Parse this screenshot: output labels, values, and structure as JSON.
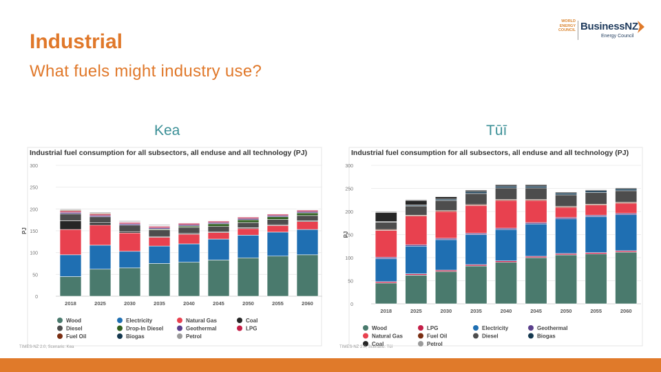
{
  "slide": {
    "title": "Industrial",
    "subtitle": "What fuels might industry use?",
    "scenario_left": "Kea",
    "scenario_right": "Tūī"
  },
  "logo": {
    "wec_text": "WORLD ENERGY COUNCIL",
    "brand": "BusinessNZ",
    "brand_sub": "Energy Council"
  },
  "colors": {
    "accent": "#e0782a",
    "scenario": "#3a8f96",
    "footer": "#e07a2a"
  },
  "chart_data": [
    {
      "type": "bar",
      "stacked": true,
      "title": "Industrial fuel consumption for all subsectors, all enduse and all technology (PJ)",
      "ylabel": "PJ",
      "ylim": [
        0,
        300
      ],
      "yticks": [
        0,
        50,
        100,
        150,
        200,
        250,
        300
      ],
      "grid": true,
      "categories": [
        "2018",
        "2025",
        "2030",
        "2035",
        "2040",
        "2045",
        "2050",
        "2055",
        "2060"
      ],
      "source": "TIMES-NZ 2.0, Scenario: Kea",
      "legend_columns": 4,
      "series": [
        {
          "name": "Wood",
          "color": "#4a7a6d",
          "values": [
            45,
            62,
            65,
            75,
            78,
            83,
            88,
            92,
            95
          ]
        },
        {
          "name": "Electricity",
          "color": "#1f6fb2",
          "values": [
            50,
            55,
            38,
            40,
            42,
            48,
            52,
            55,
            58
          ]
        },
        {
          "name": "Natural Gas",
          "color": "#e8414f",
          "values": [
            58,
            46,
            42,
            20,
            22,
            15,
            15,
            15,
            18
          ]
        },
        {
          "name": "Coal",
          "color": "#262626",
          "values": [
            20,
            5,
            3,
            2,
            2,
            2,
            2,
            2,
            2
          ]
        },
        {
          "name": "Diesel",
          "color": "#4d4d4d",
          "values": [
            16,
            14,
            15,
            15,
            14,
            12,
            12,
            12,
            12
          ]
        },
        {
          "name": "Drop-In Diesel",
          "color": "#2f5f1f",
          "values": [
            0,
            0,
            0,
            2,
            3,
            6,
            6,
            6,
            6
          ]
        },
        {
          "name": "Geothermal",
          "color": "#5a3f8c",
          "values": [
            3,
            3,
            3,
            3,
            3,
            3,
            3,
            3,
            3
          ]
        },
        {
          "name": "LPG",
          "color": "#c41f48",
          "values": [
            3,
            3,
            3,
            3,
            3,
            3,
            3,
            3,
            3
          ]
        },
        {
          "name": "Fuel Oil",
          "color": "#7a2e12",
          "values": [
            2,
            2,
            1,
            1,
            1,
            1,
            1,
            1,
            1
          ]
        },
        {
          "name": "Biogas",
          "color": "#14384f",
          "values": [
            1,
            1,
            1,
            1,
            1,
            1,
            1,
            1,
            1
          ]
        },
        {
          "name": "Petrol",
          "color": "#9a9a9a",
          "values": [
            2,
            2,
            2,
            2,
            1,
            1,
            1,
            1,
            1
          ]
        }
      ]
    },
    {
      "type": "bar",
      "stacked": true,
      "title": "Industrial fuel consumption for all subsectors, all enduse and all technology (PJ)",
      "ylabel": "PJ",
      "ylim": [
        0,
        300
      ],
      "yticks": [
        0,
        50,
        100,
        150,
        200,
        250,
        300
      ],
      "grid": true,
      "categories": [
        "2018",
        "2025",
        "2030",
        "2035",
        "2040",
        "2045",
        "2050",
        "2055",
        "2060"
      ],
      "source": "TIMES-NZ 2.0, Scenario: Tūī",
      "legend_columns": 4,
      "series": [
        {
          "name": "Wood",
          "color": "#4a7a6d",
          "values": [
            45,
            62,
            70,
            82,
            90,
            100,
            106,
            108,
            112
          ]
        },
        {
          "name": "LPG",
          "color": "#c41f48",
          "values": [
            3,
            3,
            3,
            3,
            3,
            3,
            3,
            3,
            3
          ]
        },
        {
          "name": "Electricity",
          "color": "#1f6fb2",
          "values": [
            50,
            60,
            66,
            65,
            68,
            70,
            75,
            78,
            78
          ]
        },
        {
          "name": "Geothermal",
          "color": "#5a3f8c",
          "values": [
            3,
            3,
            3,
            3,
            3,
            3,
            3,
            3,
            3
          ]
        },
        {
          "name": "Natural Gas",
          "color": "#e8414f",
          "values": [
            58,
            62,
            58,
            60,
            60,
            48,
            22,
            22,
            22
          ]
        },
        {
          "name": "Fuel Oil",
          "color": "#7a2e12",
          "values": [
            2,
            2,
            2,
            2,
            2,
            2,
            2,
            2,
            2
          ]
        },
        {
          "name": "Diesel",
          "color": "#4d4d4d",
          "values": [
            16,
            20,
            22,
            24,
            25,
            25,
            25,
            25,
            25
          ]
        },
        {
          "name": "Biogas",
          "color": "#14384f",
          "values": [
            1,
            2,
            3,
            4,
            4,
            4,
            4,
            4,
            4
          ]
        },
        {
          "name": "Coal",
          "color": "#262626",
          "values": [
            20,
            10,
            5,
            3,
            3,
            3,
            2,
            2,
            2
          ]
        },
        {
          "name": "Petrol",
          "color": "#9a9a9a",
          "values": [
            2,
            2,
            1,
            1,
            1,
            1,
            1,
            1,
            1
          ]
        }
      ]
    }
  ]
}
